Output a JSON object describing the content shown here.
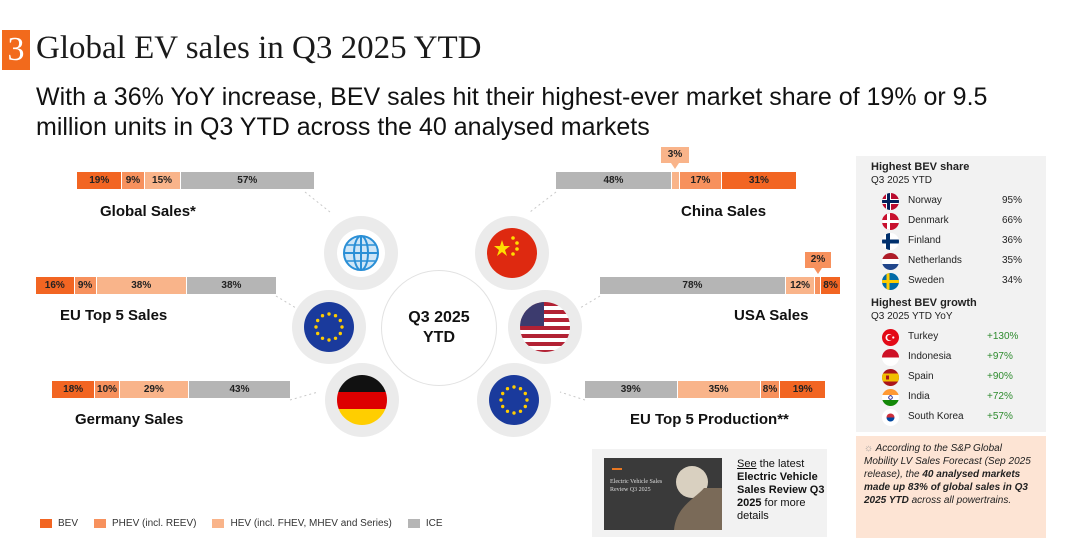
{
  "header": {
    "section_number": "3",
    "title": "Global EV sales in Q3 2025 YTD",
    "subtitle": "With a 36% YoY increase, BEV sales hit their highest-ever market share of 19% or 9.5 million units in Q3 YTD across the 40 analysed markets"
  },
  "colors": {
    "bev": "#f26522",
    "phev": "#f7915d",
    "hev": "#f9b48a",
    "ice": "#b5b5b5",
    "accent": "#f26a1c"
  },
  "center": {
    "line1": "Q3 2025",
    "line2": "YTD"
  },
  "chart_data": {
    "type": "bar",
    "title": "Powertrain share of light-vehicle sales, Q3 2025 YTD",
    "unit": "%",
    "series_names": [
      "BEV",
      "PHEV (incl. REEV)",
      "HEV (incl. FHEV, MHEV and Series)",
      "ICE"
    ],
    "charts": [
      {
        "id": "global",
        "label": "Global Sales*",
        "values": [
          19,
          9,
          15,
          57
        ],
        "labels": [
          "19%",
          "9%",
          "15%",
          "57%"
        ]
      },
      {
        "id": "eu5",
        "label": "EU Top 5 Sales",
        "values": [
          16,
          9,
          38,
          38
        ],
        "labels": [
          "16%",
          "9%",
          "38%",
          "38%"
        ]
      },
      {
        "id": "germany",
        "label": "Germany Sales",
        "values": [
          18,
          10,
          29,
          43
        ],
        "labels": [
          "18%",
          "10%",
          "29%",
          "43%"
        ]
      },
      {
        "id": "china",
        "label": "China Sales",
        "values": [
          31,
          17,
          3,
          48
        ],
        "labels": [
          "31%",
          "17%",
          "3%",
          "48%"
        ],
        "callout": "3%"
      },
      {
        "id": "usa",
        "label": "USA Sales",
        "values": [
          8,
          2,
          12,
          78
        ],
        "labels": [
          "8%",
          "2%",
          "12%",
          "78%"
        ],
        "callout": "2%"
      },
      {
        "id": "eu5prod",
        "label": "EU Top 5 Production**",
        "values": [
          19,
          8,
          35,
          39
        ],
        "labels": [
          "19%",
          "8%",
          "35%",
          "39%"
        ]
      }
    ]
  },
  "legend": {
    "bev": "BEV",
    "phev": "PHEV (incl. REEV)",
    "hev": "HEV (incl. FHEV, MHEV and Series)",
    "ice": "ICE"
  },
  "side_panel": {
    "share_heading": "Highest BEV share",
    "share_sub": "Q3 2025 YTD",
    "share": [
      {
        "country": "Norway",
        "value": "95%"
      },
      {
        "country": "Denmark",
        "value": "66%"
      },
      {
        "country": "Finland",
        "value": "36%"
      },
      {
        "country": "Netherlands",
        "value": "35%"
      },
      {
        "country": "Sweden",
        "value": "34%"
      }
    ],
    "growth_heading": "Highest BEV growth",
    "growth_sub": "Q3 2025 YTD YoY",
    "growth": [
      {
        "country": "Turkey",
        "value": "+130%"
      },
      {
        "country": "Indonesia",
        "value": "+97%"
      },
      {
        "country": "Spain",
        "value": "+90%"
      },
      {
        "country": "India",
        "value": "+72%"
      },
      {
        "country": "South Korea",
        "value": "+57%"
      }
    ]
  },
  "note": {
    "text1": "According to the S&P Global Mobility LV Sales Forecast (Sep 2025 release), the ",
    "bold": "40 analysed markets made up 83% of global sales in Q3 2025 YTD",
    "text2": " across all powertrains."
  },
  "report": {
    "link": "See",
    "text1": " the latest ",
    "bold": "Electric Vehicle Sales Review Q3 2025",
    "text2": " for more details",
    "cover_title": "Electric Vehicle Sales Review Q3 2025"
  }
}
